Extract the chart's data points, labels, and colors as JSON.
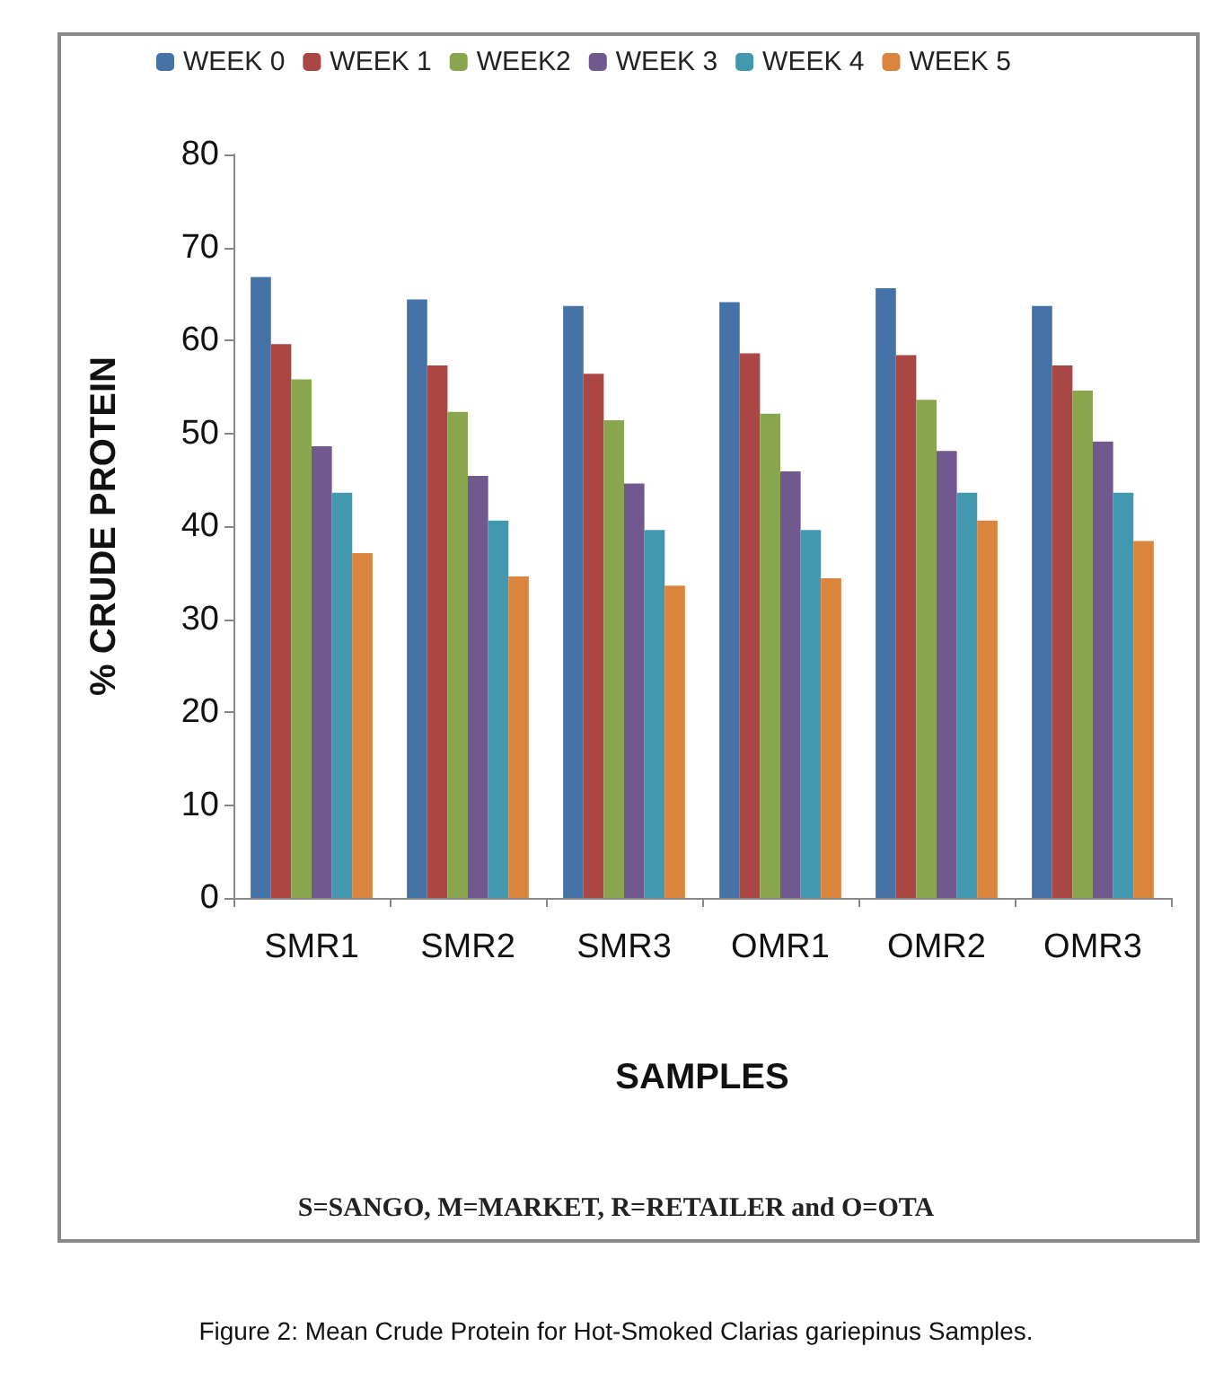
{
  "chart_data": {
    "type": "bar",
    "xlabel": "SAMPLES",
    "ylabel": "% CRUDE PROTEIN",
    "categories": [
      "SMR1",
      "SMR2",
      "SMR3",
      "OMR1",
      "OMR2",
      "OMR3"
    ],
    "series": [
      {
        "name": "WEEK 0",
        "color": "#4572a7",
        "values": [
          66.8,
          64.4,
          63.7,
          64.1,
          65.6,
          63.7
        ]
      },
      {
        "name": "WEEK 1",
        "color": "#aa4643",
        "values": [
          59.6,
          57.3,
          56.4,
          58.6,
          58.4,
          57.3
        ]
      },
      {
        "name": "WEEK2",
        "color": "#89a54e",
        "values": [
          55.8,
          52.3,
          51.4,
          52.1,
          53.6,
          54.6
        ]
      },
      {
        "name": "WEEK 3",
        "color": "#71588f",
        "values": [
          48.6,
          45.4,
          44.6,
          45.9,
          48.1,
          49.1
        ]
      },
      {
        "name": "WEEK 4",
        "color": "#4198af",
        "values": [
          43.6,
          40.6,
          39.6,
          39.6,
          43.6,
          43.6
        ]
      },
      {
        "name": "WEEK 5",
        "color": "#db843d",
        "values": [
          37.1,
          34.6,
          33.6,
          34.4,
          40.6,
          38.4
        ]
      }
    ],
    "ylim": [
      0,
      80
    ],
    "yticks": [
      0,
      10,
      20,
      30,
      40,
      50,
      60,
      70,
      80
    ],
    "grid": false,
    "legend": "top",
    "annotations": [
      "S=SANGO, M=MARKET, R=RETAILER and O=OTA",
      "Figure 2: Mean Crude Protein for Hot-Smoked Clarias gariepinus Samples."
    ]
  }
}
